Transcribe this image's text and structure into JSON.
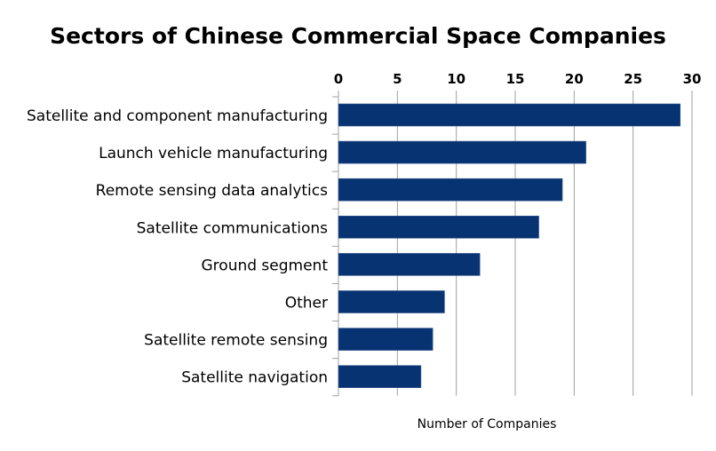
{
  "chart_data": {
    "type": "bar",
    "orientation": "horizontal",
    "title": "Sectors of Chinese Commercial Space Companies",
    "xlabel": "Number of Companies",
    "ylabel": "",
    "categories": [
      "Satellite and component manufacturing",
      "Launch vehicle manufacturing",
      "Remote sensing data analytics",
      "Satellite communications",
      "Ground segment",
      "Other",
      "Satellite remote sensing",
      "Satellite navigation"
    ],
    "values": [
      29,
      21,
      19,
      17,
      12,
      9,
      8,
      7
    ],
    "xlim": [
      0,
      30
    ],
    "xticks": [
      "0",
      "5",
      "10",
      "15",
      "20",
      "25",
      "30"
    ],
    "x_axis_position": "top",
    "grid": true,
    "bar_color": "#083372"
  }
}
